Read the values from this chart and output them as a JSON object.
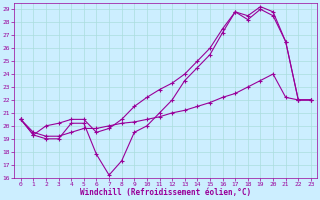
{
  "xlabel": "Windchill (Refroidissement éolien,°C)",
  "bg_color": "#cceeff",
  "grid_color": "#aadddd",
  "line_color": "#990099",
  "xlim": [
    -0.5,
    23.5
  ],
  "ylim": [
    16,
    29.5
  ],
  "xticks": [
    0,
    1,
    2,
    3,
    4,
    5,
    6,
    7,
    8,
    9,
    10,
    11,
    12,
    13,
    14,
    15,
    16,
    17,
    18,
    19,
    20,
    21,
    22,
    23
  ],
  "yticks": [
    16,
    17,
    18,
    19,
    20,
    21,
    22,
    23,
    24,
    25,
    26,
    27,
    28,
    29
  ],
  "line1_x": [
    0,
    1,
    2,
    3,
    4,
    5,
    6,
    7,
    8,
    9,
    10,
    11,
    12,
    13,
    14,
    15,
    16,
    17,
    18,
    19,
    20,
    21,
    22,
    23
  ],
  "line1_y": [
    20.5,
    19.3,
    19.0,
    19.0,
    20.2,
    20.2,
    17.8,
    16.2,
    17.3,
    19.5,
    20.0,
    21.0,
    22.0,
    23.5,
    24.5,
    25.5,
    27.2,
    28.8,
    28.5,
    29.2,
    28.8,
    26.5,
    22.0,
    22.0
  ],
  "line2_x": [
    0,
    1,
    2,
    3,
    4,
    5,
    6,
    7,
    8,
    9,
    10,
    11,
    12,
    13,
    14,
    15,
    16,
    17,
    18,
    19,
    20,
    21,
    22,
    23
  ],
  "line2_y": [
    20.5,
    19.3,
    20.0,
    20.2,
    20.5,
    20.5,
    19.5,
    19.8,
    20.5,
    21.5,
    22.2,
    22.8,
    23.3,
    24.0,
    25.0,
    26.0,
    27.5,
    28.8,
    28.2,
    29.0,
    28.5,
    26.5,
    22.0,
    22.0
  ],
  "line3_x": [
    0,
    1,
    2,
    3,
    4,
    5,
    6,
    7,
    8,
    9,
    10,
    11,
    12,
    13,
    14,
    15,
    16,
    17,
    18,
    19,
    20,
    21,
    22,
    23
  ],
  "line3_y": [
    20.5,
    19.5,
    19.2,
    19.2,
    19.5,
    19.8,
    19.8,
    20.0,
    20.2,
    20.3,
    20.5,
    20.7,
    21.0,
    21.2,
    21.5,
    21.8,
    22.2,
    22.5,
    23.0,
    23.5,
    24.0,
    22.2,
    22.0,
    22.0
  ]
}
